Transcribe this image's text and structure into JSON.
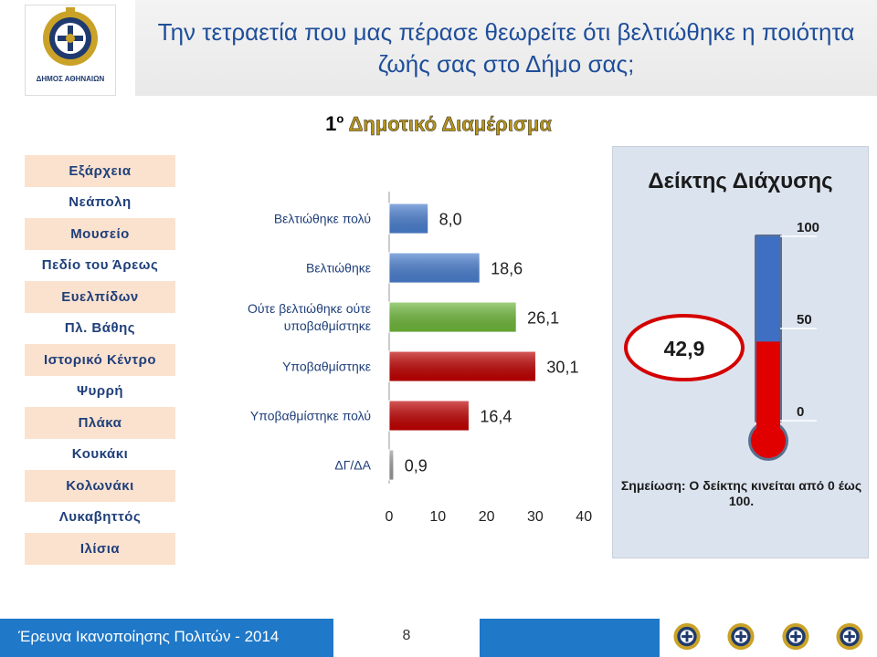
{
  "logo": {
    "caption": "ΔΗΜΟΣ ΑΘΗΝΑΙΩΝ"
  },
  "title": "Την τετραετία που μας πέρασε θεωρείτε ότι βελτιώθηκε η ποιότητα ζωής σας στο Δήμο σας;",
  "subtitle": {
    "num": "1",
    "sup": "ο",
    "text": "Δημοτικό Διαμέρισμα"
  },
  "neighborhoods": [
    "Εξάρχεια",
    "Νεάπολη",
    "Μουσείο",
    "Πεδίο του Άρεως",
    "Ευελπίδων",
    "Πλ. Βάθης",
    "Ιστορικό Κέντρο",
    "Ψυρρή",
    "Πλάκα",
    "Κουκάκι",
    "Κολωνάκι",
    "Λυκαβηττός",
    "Ιλίσια"
  ],
  "chart_data": {
    "type": "bar",
    "orientation": "horizontal",
    "categories": [
      "Βελτιώθηκε πολύ",
      "Βελτιώθηκε",
      "Ούτε βελτιώθηκε ούτε υποβαθμίστηκε",
      "Υποβαθμίστηκε",
      "Υποβαθμίστηκε πολύ",
      "ΔΓ/ΔΑ"
    ],
    "category_lines": [
      [
        "Βελτιώθηκε πολύ"
      ],
      [
        "Βελτιώθηκε"
      ],
      [
        "Ούτε βελτιώθηκε ούτε",
        "υποβαθμίστηκε"
      ],
      [
        "Υποβαθμίστηκε"
      ],
      [
        "Υποβαθμίστηκε πολύ"
      ],
      [
        "ΔΓ/ΔΑ"
      ]
    ],
    "values": [
      8.0,
      18.6,
      26.1,
      30.1,
      16.4,
      0.9
    ],
    "value_labels": [
      "8,0",
      "18,6",
      "26,1",
      "30,1",
      "16,4",
      "0,9"
    ],
    "colors": [
      "#4a7fd0",
      "#4a7fd0",
      "#6fb83a",
      "#c00000",
      "#c00000",
      "#9a9a9a"
    ],
    "xlim": [
      0,
      40
    ],
    "xticks": [
      "0",
      "10",
      "20",
      "30",
      "40"
    ],
    "grid": false
  },
  "index": {
    "title": "Δείκτης Διάχυσης",
    "value": 42.9,
    "value_label": "42,9",
    "scale": [
      "100",
      "50",
      "0"
    ],
    "range": [
      0,
      100
    ],
    "note": "Σημείωση: Ο δείκτης κινείται από 0 έως 100."
  },
  "footer": {
    "text": "Έρευνα Ικανοποίησης Πολιτών - 2014",
    "page": "8"
  },
  "colors": {
    "footer": "#1f78c8",
    "title": "#1f4e9a",
    "side_odd": "#fbe2cf",
    "thermo_red": "#e00000"
  }
}
